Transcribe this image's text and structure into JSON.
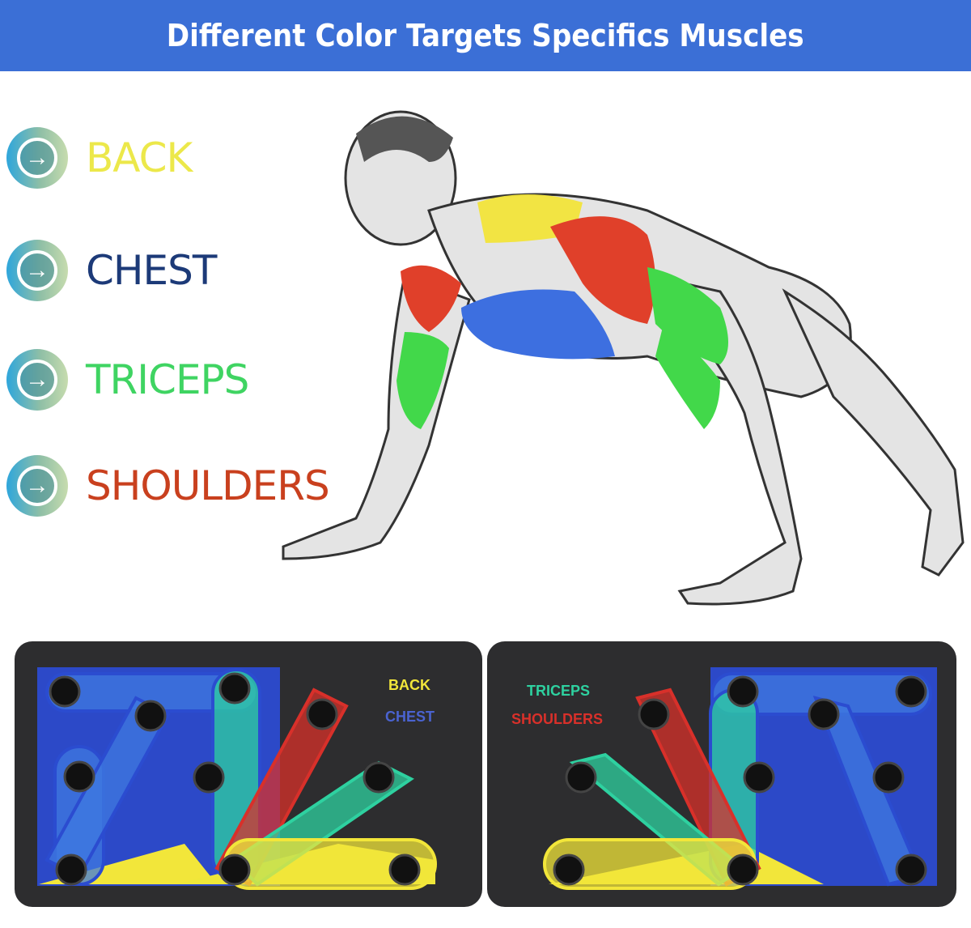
{
  "banner": {
    "title": "Different Color Targets Specifics Muscles",
    "background": "#3b6fd6"
  },
  "legend": [
    {
      "label": "BACK",
      "color": "#ece84a",
      "icon": "arrow-right-circle-icon"
    },
    {
      "label": "CHEST",
      "color": "#1c3a78",
      "icon": "arrow-right-circle-icon"
    },
    {
      "label": "TRICEPS",
      "color": "#3fd462",
      "icon": "arrow-right-circle-icon"
    },
    {
      "label": "SHOULDERS",
      "color": "#c9401e",
      "icon": "arrow-right-circle-icon"
    }
  ],
  "board": {
    "labels": {
      "back": "BACK",
      "chest": "CHEST",
      "triceps": "TRICEPS",
      "shoulders": "SHOULDERS"
    },
    "colors": {
      "back": "#f2e63a",
      "chest": "#3f5fd8",
      "triceps": "#2ed1a0",
      "shoulders": "#d8302a"
    }
  }
}
